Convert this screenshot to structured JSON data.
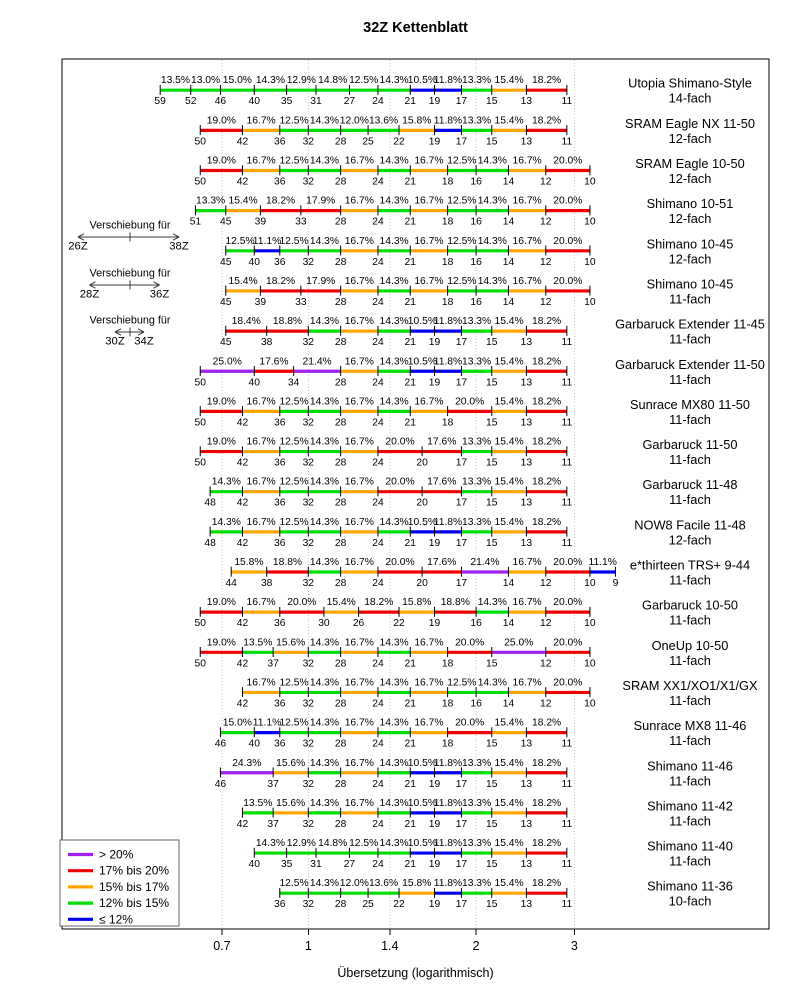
{
  "title": "32Z Kettenblatt",
  "axis": {
    "label": "Übersetzung (logarithmisch)",
    "tick_labels": [
      "0.7",
      "1",
      "1.4",
      "2",
      "3"
    ],
    "tick_values": [
      0.7,
      1,
      1.4,
      2,
      3
    ]
  },
  "legend": {
    "items": [
      {
        "label": "> 20%",
        "color": "purple"
      },
      {
        "label": "17% bis 20%",
        "color": "red"
      },
      {
        "label": "15% bis 17%",
        "color": "orange"
      },
      {
        "label": "12% bis 15%",
        "color": "green"
      },
      {
        "label": "≤ 12%",
        "color": "blue"
      }
    ]
  },
  "colors": {
    "purple": "#A020F0",
    "red": "#EE0000",
    "orange": "#FFA500",
    "green": "#00DD00",
    "blue": "#0000EE"
  },
  "annotations": [
    {
      "title": "Verschiebung für",
      "left": "26Z",
      "right": "38Z"
    },
    {
      "title": "Verschiebung für",
      "left": "28Z",
      "right": "36Z"
    },
    {
      "title": "Verschiebung für",
      "left": "30Z",
      "right": "34Z"
    }
  ],
  "chart_data": {
    "type": "line",
    "title": "32Z Kettenblatt",
    "xlabel": "Übersetzung (logarithmisch)",
    "x_scale": "log",
    "x_ticks": [
      0.7,
      1,
      1.4,
      2,
      3
    ],
    "chainring_teeth": 32,
    "legend_position": "bottom-left",
    "cassettes": [
      {
        "name": "Utopia Shimano-Style",
        "variant": "14-fach",
        "sprockets": [
          59,
          52,
          46,
          40,
          35,
          31,
          27,
          24,
          21,
          19,
          17,
          15,
          13,
          11
        ],
        "jumps_percent": [
          13.5,
          13.0,
          15.0,
          14.3,
          12.9,
          14.8,
          12.5,
          14.3,
          10.5,
          11.8,
          13.3,
          15.4,
          18.2
        ]
      },
      {
        "name": "SRAM Eagle NX 11-50",
        "variant": "12-fach",
        "sprockets": [
          50,
          42,
          36,
          32,
          28,
          25,
          22,
          19,
          17,
          15,
          13,
          11
        ],
        "jumps_percent": [
          19.0,
          16.7,
          12.5,
          14.3,
          12.0,
          13.6,
          15.8,
          11.8,
          13.3,
          15.4,
          18.2
        ]
      },
      {
        "name": "SRAM Eagle 10-50",
        "variant": "12-fach",
        "sprockets": [
          50,
          42,
          36,
          32,
          28,
          24,
          21,
          18,
          16,
          14,
          12,
          10
        ],
        "jumps_percent": [
          19.0,
          16.7,
          12.5,
          14.3,
          16.7,
          14.3,
          16.7,
          12.5,
          14.3,
          16.7,
          20.0
        ]
      },
      {
        "name": "Shimano 10-51",
        "variant": "12-fach",
        "sprockets": [
          51,
          45,
          39,
          33,
          28,
          24,
          21,
          18,
          16,
          14,
          12,
          10
        ],
        "jumps_percent": [
          13.3,
          15.4,
          18.2,
          17.9,
          16.7,
          14.3,
          16.7,
          12.5,
          14.3,
          16.7,
          20.0
        ]
      },
      {
        "name": "Shimano 10-45",
        "variant": "12-fach",
        "sprockets": [
          45,
          40,
          36,
          32,
          28,
          24,
          21,
          18,
          16,
          14,
          12,
          10
        ],
        "jumps_percent": [
          12.5,
          11.1,
          12.5,
          14.3,
          16.7,
          14.3,
          16.7,
          12.5,
          14.3,
          16.7,
          20.0
        ]
      },
      {
        "name": "Shimano 10-45",
        "variant": "11-fach",
        "sprockets": [
          45,
          39,
          33,
          28,
          24,
          21,
          18,
          16,
          14,
          12,
          10
        ],
        "jumps_percent": [
          15.4,
          18.2,
          17.9,
          16.7,
          14.3,
          16.7,
          12.5,
          14.3,
          16.7,
          20.0
        ]
      },
      {
        "name": "Garbaruck Extender 11-45",
        "variant": "11-fach",
        "sprockets": [
          45,
          38,
          32,
          28,
          24,
          21,
          19,
          17,
          15,
          13,
          11
        ],
        "jumps_percent": [
          18.4,
          18.8,
          14.3,
          16.7,
          14.3,
          10.5,
          11.8,
          13.3,
          15.4,
          18.2
        ]
      },
      {
        "name": "Garbaruck Extender 11-50",
        "variant": "11-fach",
        "sprockets": [
          50,
          40,
          34,
          28,
          24,
          21,
          19,
          17,
          15,
          13,
          11
        ],
        "jumps_percent": [
          25.0,
          17.6,
          21.4,
          16.7,
          14.3,
          10.5,
          11.8,
          13.3,
          15.4,
          18.2
        ]
      },
      {
        "name": "Sunrace MX80 11-50",
        "variant": "11-fach",
        "sprockets": [
          50,
          42,
          36,
          32,
          28,
          24,
          21,
          18,
          15,
          13,
          11
        ],
        "jumps_percent": [
          19.0,
          16.7,
          12.5,
          14.3,
          16.7,
          14.3,
          16.7,
          20.0,
          15.4,
          18.2
        ]
      },
      {
        "name": "Garbaruck 11-50",
        "variant": "11-fach",
        "sprockets": [
          50,
          42,
          36,
          32,
          28,
          24,
          20,
          17,
          15,
          13,
          11
        ],
        "jumps_percent": [
          19.0,
          16.7,
          12.5,
          14.3,
          16.7,
          20.0,
          17.6,
          13.3,
          15.4,
          18.2
        ]
      },
      {
        "name": "Garbaruck 11-48",
        "variant": "11-fach",
        "sprockets": [
          48,
          42,
          36,
          32,
          28,
          24,
          20,
          17,
          15,
          13,
          11
        ],
        "jumps_percent": [
          14.3,
          16.7,
          12.5,
          14.3,
          16.7,
          20.0,
          17.6,
          13.3,
          15.4,
          18.2
        ]
      },
      {
        "name": "NOW8 Facile 11-48",
        "variant": "12-fach",
        "sprockets": [
          48,
          42,
          36,
          32,
          28,
          24,
          21,
          19,
          17,
          15,
          13,
          11
        ],
        "jumps_percent": [
          14.3,
          16.7,
          12.5,
          14.3,
          16.7,
          14.3,
          10.5,
          11.8,
          13.3,
          15.4,
          18.2
        ]
      },
      {
        "name": "e*thirteen TRS+ 9-44",
        "variant": "11-fach",
        "sprockets": [
          44,
          38,
          32,
          28,
          24,
          20,
          17,
          14,
          12,
          10,
          9
        ],
        "jumps_percent": [
          15.8,
          18.8,
          14.3,
          16.7,
          20.0,
          17.6,
          21.4,
          16.7,
          20.0,
          11.1
        ]
      },
      {
        "name": "Garbaruck 10-50",
        "variant": "11-fach",
        "sprockets": [
          50,
          42,
          36,
          30,
          26,
          22,
          19,
          16,
          14,
          12,
          10
        ],
        "jumps_percent": [
          19.0,
          16.7,
          20.0,
          15.4,
          18.2,
          15.8,
          18.8,
          14.3,
          16.7,
          20.0
        ]
      },
      {
        "name": "OneUp 10-50",
        "variant": "11-fach",
        "sprockets": [
          50,
          42,
          37,
          32,
          28,
          24,
          21,
          18,
          15,
          12,
          10
        ],
        "jumps_percent": [
          19.0,
          13.5,
          15.6,
          14.3,
          16.7,
          14.3,
          16.7,
          20.0,
          25.0,
          20.0
        ]
      },
      {
        "name": "SRAM XX1/XO1/X1/GX",
        "variant": "11-fach",
        "sprockets": [
          42,
          36,
          32,
          28,
          24,
          21,
          18,
          16,
          14,
          12,
          10
        ],
        "jumps_percent": [
          16.7,
          12.5,
          14.3,
          16.7,
          14.3,
          16.7,
          12.5,
          14.3,
          16.7,
          20.0
        ]
      },
      {
        "name": "Sunrace MX8 11-46",
        "variant": "11-fach",
        "sprockets": [
          46,
          40,
          36,
          32,
          28,
          24,
          21,
          18,
          15,
          13,
          11
        ],
        "jumps_percent": [
          15.0,
          11.1,
          12.5,
          14.3,
          16.7,
          14.3,
          16.7,
          20.0,
          15.4,
          18.2
        ]
      },
      {
        "name": "Shimano 11-46",
        "variant": "11-fach",
        "sprockets": [
          46,
          37,
          32,
          28,
          24,
          21,
          19,
          17,
          15,
          13,
          11
        ],
        "jumps_percent": [
          24.3,
          15.6,
          14.3,
          16.7,
          14.3,
          10.5,
          11.8,
          13.3,
          15.4,
          18.2
        ]
      },
      {
        "name": "Shimano 11-42",
        "variant": "11-fach",
        "sprockets": [
          42,
          37,
          32,
          28,
          24,
          21,
          19,
          17,
          15,
          13,
          11
        ],
        "jumps_percent": [
          13.5,
          15.6,
          14.3,
          16.7,
          14.3,
          10.5,
          11.8,
          13.3,
          15.4,
          18.2
        ]
      },
      {
        "name": "Shimano 11-40",
        "variant": "11-fach",
        "sprockets": [
          40,
          35,
          31,
          27,
          24,
          21,
          19,
          17,
          15,
          13,
          11
        ],
        "jumps_percent": [
          14.3,
          12.9,
          14.8,
          12.5,
          14.3,
          10.5,
          11.8,
          13.3,
          15.4,
          18.2
        ]
      },
      {
        "name": "Shimano 11-36",
        "variant": "10-fach",
        "sprockets": [
          36,
          32,
          28,
          25,
          22,
          19,
          17,
          15,
          13,
          11
        ],
        "jumps_percent": [
          12.5,
          14.3,
          12.0,
          13.6,
          15.8,
          11.8,
          13.3,
          15.4,
          18.2
        ]
      }
    ]
  }
}
